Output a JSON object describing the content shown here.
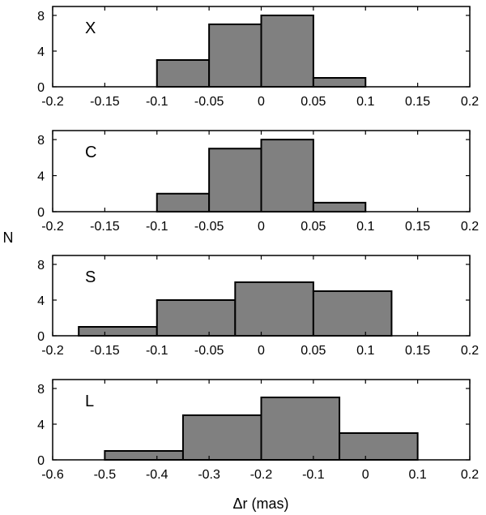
{
  "figure": {
    "ylabel": "N",
    "xlabel": "Δr (mas)"
  },
  "chart_data": [
    {
      "type": "bar",
      "label": "X",
      "xlim": [
        -0.2,
        0.2
      ],
      "ylim": [
        0,
        9
      ],
      "xticks": [
        "-0.2",
        "-0.15",
        "-0.1",
        "-0.05",
        "0",
        "0.05",
        "0.1",
        "0.15",
        "0.2"
      ],
      "yticks": [
        "0",
        "4",
        "8"
      ],
      "bins": [
        {
          "x0": -0.1,
          "x1": -0.05,
          "value": 3
        },
        {
          "x0": -0.05,
          "x1": 0.0,
          "value": 7
        },
        {
          "x0": 0.0,
          "x1": 0.05,
          "value": 8
        },
        {
          "x0": 0.05,
          "x1": 0.1,
          "value": 1
        }
      ]
    },
    {
      "type": "bar",
      "label": "C",
      "xlim": [
        -0.2,
        0.2
      ],
      "ylim": [
        0,
        9
      ],
      "xticks": [
        "-0.2",
        "-0.15",
        "-0.1",
        "-0.05",
        "0",
        "0.05",
        "0.1",
        "0.15",
        "0.2"
      ],
      "yticks": [
        "0",
        "4",
        "8"
      ],
      "bins": [
        {
          "x0": -0.1,
          "x1": -0.05,
          "value": 2
        },
        {
          "x0": -0.05,
          "x1": 0.0,
          "value": 7
        },
        {
          "x0": 0.0,
          "x1": 0.05,
          "value": 8
        },
        {
          "x0": 0.05,
          "x1": 0.1,
          "value": 1
        }
      ]
    },
    {
      "type": "bar",
      "label": "S",
      "xlim": [
        -0.2,
        0.2
      ],
      "ylim": [
        0,
        9
      ],
      "xticks": [
        "-0.2",
        "-0.15",
        "-0.1",
        "-0.05",
        "0",
        "0.05",
        "0.1",
        "0.15",
        "0.2"
      ],
      "yticks": [
        "0",
        "4",
        "8"
      ],
      "bins": [
        {
          "x0": -0.175,
          "x1": -0.1,
          "value": 1
        },
        {
          "x0": -0.1,
          "x1": -0.025,
          "value": 4
        },
        {
          "x0": -0.025,
          "x1": 0.05,
          "value": 6
        },
        {
          "x0": 0.05,
          "x1": 0.125,
          "value": 5
        }
      ]
    },
    {
      "type": "bar",
      "label": "L",
      "xlim": [
        -0.6,
        0.2
      ],
      "ylim": [
        0,
        9
      ],
      "xticks": [
        "-0.6",
        "-0.5",
        "-0.4",
        "-0.3",
        "-0.2",
        "-0.1",
        "0",
        "0.1",
        "0.2"
      ],
      "yticks": [
        "0",
        "4",
        "8"
      ],
      "bins": [
        {
          "x0": -0.5,
          "x1": -0.35,
          "value": 1
        },
        {
          "x0": -0.35,
          "x1": -0.2,
          "value": 5
        },
        {
          "x0": -0.2,
          "x1": -0.05,
          "value": 7
        },
        {
          "x0": -0.05,
          "x1": 0.1,
          "value": 3
        }
      ]
    }
  ]
}
